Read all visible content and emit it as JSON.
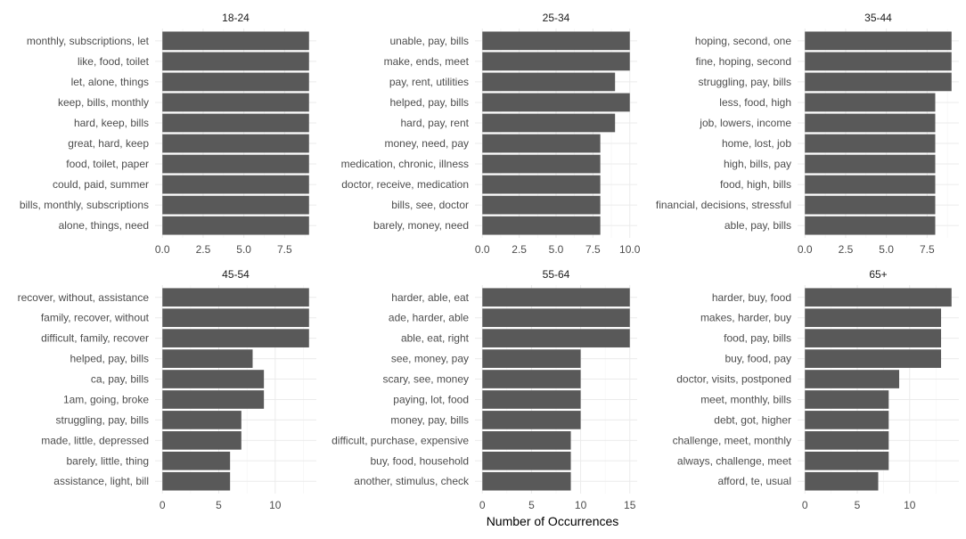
{
  "chart_data": {
    "type": "bar",
    "orientation": "horizontal",
    "xlabel": "Number of Occurrences",
    "bar_color": "#595959",
    "grid": true,
    "facets": [
      {
        "title": "18-24",
        "categories": [
          "monthly, subscriptions, let",
          "like, food, toilet",
          "let, alone, things",
          "keep, bills, monthly",
          "hard, keep, bills",
          "great, hard, keep",
          "food, toilet, paper",
          "could, paid, summer",
          "bills, monthly, subscriptions",
          "alone, things, need"
        ],
        "values": [
          9,
          9,
          9,
          9,
          9,
          9,
          9,
          9,
          9,
          9
        ],
        "xlim": [
          0,
          9
        ],
        "xticks": [
          0,
          2.5,
          5,
          7.5
        ],
        "xtick_labels": [
          "0.0",
          "2.5",
          "5.0",
          "7.5"
        ]
      },
      {
        "title": "25-34",
        "categories": [
          "unable, pay, bills",
          "make, ends, meet",
          "pay, rent, utilities",
          "helped, pay, bills",
          "hard, pay, rent",
          "money, need, pay",
          "medication, chronic, illness",
          "doctor, receive, medication",
          "bills, see, doctor",
          "barely, money, need"
        ],
        "values": [
          10,
          10,
          9,
          10,
          9,
          8,
          8,
          8,
          8,
          8
        ],
        "xlim": [
          0,
          10
        ],
        "xticks": [
          0,
          2.5,
          5,
          7.5,
          10
        ],
        "xtick_labels": [
          "0.0",
          "2.5",
          "5.0",
          "7.5",
          "10.0"
        ]
      },
      {
        "title": "35-44",
        "categories": [
          "hoping, second, one",
          "fine, hoping, second",
          "struggling, pay, bills",
          "less, food, high",
          "job, lowers, income",
          "home, lost, job",
          "high, bills, pay",
          "food, high, bills",
          "financial, decisions, stressful",
          "able, pay, bills"
        ],
        "values": [
          9,
          9,
          9,
          8,
          8,
          8,
          8,
          8,
          8,
          8
        ],
        "xlim": [
          0,
          9
        ],
        "xticks": [
          0,
          2.5,
          5,
          7.5
        ],
        "xtick_labels": [
          "0.0",
          "2.5",
          "5.0",
          "7.5"
        ]
      },
      {
        "title": "45-54",
        "categories": [
          "recover, without, assistance",
          "family, recover, without",
          "difficult, family, recover",
          "helped, pay, bills",
          "ca, pay, bills",
          "1am, going, broke",
          "struggling, pay, bills",
          "made, little, depressed",
          "barely, little, thing",
          "assistance, light, bill"
        ],
        "values": [
          13,
          13,
          13,
          8,
          9,
          9,
          7,
          7,
          6,
          6
        ],
        "xlim": [
          0,
          13
        ],
        "xticks": [
          0,
          5,
          10
        ],
        "xtick_labels": [
          "0",
          "5",
          "10"
        ]
      },
      {
        "title": "55-64",
        "categories": [
          "harder, able, eat",
          "ade, harder, able",
          "able, eat, right",
          "see, money, pay",
          "scary, see, money",
          "paying, lot, food",
          "money, pay, bills",
          "difficult, purchase, expensive",
          "buy, food, household",
          "another, stimulus, check"
        ],
        "values": [
          15,
          15,
          15,
          10,
          10,
          10,
          10,
          9,
          9,
          9
        ],
        "xlim": [
          0,
          15
        ],
        "xticks": [
          0,
          5,
          10,
          15
        ],
        "xtick_labels": [
          "0",
          "5",
          "10",
          "15"
        ]
      },
      {
        "title": "65+",
        "categories": [
          "harder, buy, food",
          "makes, harder, buy",
          "food, pay, bills",
          "buy, food, pay",
          "doctor, visits, postponed",
          "meet, monthly, bills",
          "debt, got, higher",
          "challenge, meet, monthly",
          "always, challenge, meet",
          "afford, te, usual"
        ],
        "values": [
          14,
          13,
          13,
          13,
          9,
          8,
          8,
          8,
          8,
          7
        ],
        "xlim": [
          0,
          14
        ],
        "xticks": [
          0,
          5,
          10
        ],
        "xtick_labels": [
          "0",
          "5",
          "10"
        ]
      }
    ]
  }
}
